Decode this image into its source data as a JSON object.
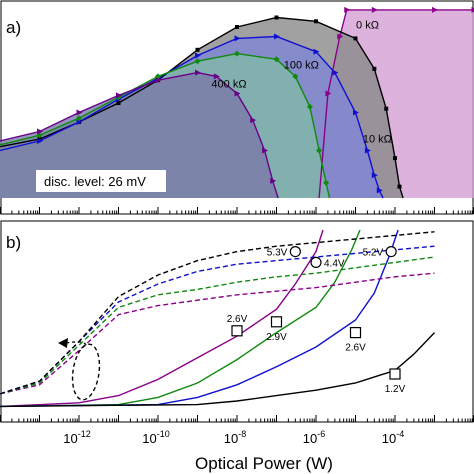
{
  "chart_data": [
    {
      "panel": "a)",
      "type": "area",
      "title": "",
      "xscale": "log",
      "xlim": [
        1e-14,
        0.01
      ],
      "ylim": [
        0,
        1
      ],
      "ylabel": "",
      "annotation": "disc. level: 26 mV",
      "series": [
        {
          "name": "0 kΩ",
          "fill": "#8a8a8a",
          "stroke": "#000000",
          "marker": "square",
          "x": [
            1e-14,
            1e-13,
            1e-12,
            1e-11,
            1e-10,
            1e-09,
            1e-08,
            1e-07,
            1e-06,
            1e-05,
            3e-05,
            6e-05,
            0.0001,
            0.00013,
            0.00016
          ],
          "y": [
            0.27,
            0.31,
            0.4,
            0.5,
            0.62,
            0.78,
            0.9,
            0.95,
            0.93,
            0.84,
            0.68,
            0.47,
            0.21,
            0.06,
            0.0
          ]
        },
        {
          "name": "10 kΩ",
          "fill": "#7f86d6",
          "stroke": "#1010d0",
          "marker": "triangle-right",
          "x": [
            1e-14,
            1e-13,
            1e-12,
            1e-11,
            1e-10,
            1e-09,
            1e-08,
            1e-07,
            1e-06,
            3e-06,
            1e-05,
            2e-05,
            3e-05,
            4e-05,
            5e-05
          ],
          "y": [
            0.25,
            0.3,
            0.4,
            0.52,
            0.63,
            0.75,
            0.84,
            0.85,
            0.77,
            0.66,
            0.45,
            0.25,
            0.12,
            0.04,
            0.0
          ]
        },
        {
          "name": "100 kΩ",
          "fill": "#7fb9a8",
          "stroke": "#108a10",
          "marker": "diamond",
          "x": [
            1e-14,
            1e-13,
            1e-12,
            1e-11,
            1e-10,
            1e-09,
            1e-08,
            1e-07,
            3e-07,
            7e-07,
            1.2e-06,
            1.8e-06,
            2.2e-06
          ],
          "y": [
            0.28,
            0.33,
            0.42,
            0.53,
            0.64,
            0.72,
            0.76,
            0.73,
            0.64,
            0.48,
            0.25,
            0.08,
            0.0
          ]
        },
        {
          "name": "400 kΩ",
          "fill": "#7a7aa8",
          "stroke": "#6a008a",
          "marker": "triangle-right",
          "x": [
            1e-14,
            1e-13,
            1e-12,
            1e-11,
            1e-10,
            1e-09,
            3e-09,
            1e-08,
            2.5e-08,
            5e-08,
            8e-08,
            1.1e-07
          ],
          "y": [
            0.3,
            0.35,
            0.45,
            0.54,
            0.62,
            0.66,
            0.64,
            0.55,
            0.41,
            0.25,
            0.09,
            0.0
          ]
        },
        {
          "name": "",
          "fill": "#d4a0d4",
          "stroke": "#8a008a",
          "marker": "triangle-right",
          "x": [
            1.2e-06,
            2e-06,
            4e-06,
            6e-06,
            3e-05,
            0.001,
            0.01
          ],
          "y": [
            0.0,
            0.55,
            0.85,
            0.99,
            0.99,
            0.99,
            0.99
          ]
        }
      ],
      "labels": [
        {
          "text": "0 kΩ",
          "series": 0
        },
        {
          "text": "10 kΩ",
          "series": 1
        },
        {
          "text": "100 kΩ",
          "series": 2
        },
        {
          "text": "400 kΩ",
          "series": 3
        }
      ]
    },
    {
      "panel": "b)",
      "type": "line",
      "xscale": "log",
      "xlim": [
        1e-14,
        0.01
      ],
      "xticks": [
        {
          "exp": -12,
          "text": "10",
          "sup": "-12"
        },
        {
          "exp": -10,
          "text": "10",
          "sup": "-10"
        },
        {
          "exp": -8,
          "text": "10",
          "sup": "-8"
        },
        {
          "exp": -6,
          "text": "10",
          "sup": "-6"
        },
        {
          "exp": -4,
          "text": "10",
          "sup": "-4"
        }
      ],
      "xlabel": "Optical Power (W)",
      "ylabel": "",
      "ylim": [
        0,
        1
      ],
      "series": [
        {
          "name": "",
          "style": "solid",
          "color": "#8a008a",
          "x": [
            1e-14,
            1e-12,
            1e-11,
            1e-10,
            1e-09,
            1e-08,
            1e-07,
            3e-07,
            1e-06,
            1.5e-06
          ],
          "y": [
            0.02,
            0.04,
            0.08,
            0.17,
            0.29,
            0.41,
            0.56,
            0.7,
            0.88,
            1.0
          ]
        },
        {
          "name": "",
          "style": "solid",
          "color": "#108a10",
          "x": [
            1e-14,
            1e-11,
            1e-10,
            1e-09,
            1e-08,
            1e-07,
            1e-06,
            3e-06,
            8e-06,
            1.3e-05
          ],
          "y": [
            0.02,
            0.03,
            0.07,
            0.15,
            0.28,
            0.43,
            0.57,
            0.71,
            0.89,
            1.0
          ]
        },
        {
          "name": "",
          "style": "solid",
          "color": "#1010d0",
          "x": [
            1e-14,
            1e-10,
            1e-09,
            1e-08,
            1e-07,
            1e-06,
            1e-05,
            3e-05,
            7e-05,
            0.00012
          ],
          "y": [
            0.02,
            0.03,
            0.07,
            0.14,
            0.24,
            0.35,
            0.5,
            0.65,
            0.85,
            1.0
          ]
        },
        {
          "name": "",
          "style": "solid",
          "color": "#000000",
          "x": [
            1e-14,
            1e-09,
            1e-08,
            1e-07,
            1e-06,
            1e-05,
            0.0001,
            0.0003,
            0.001
          ],
          "y": [
            0.02,
            0.03,
            0.05,
            0.08,
            0.11,
            0.15,
            0.22,
            0.31,
            0.43
          ]
        },
        {
          "name": "",
          "style": "dashed",
          "color": "#8a008a",
          "x": [
            1e-14,
            1e-13,
            1e-12,
            1e-11,
            1e-10,
            1e-09,
            1e-08,
            1e-07,
            1e-06,
            1e-05,
            0.0001,
            0.001
          ],
          "y": [
            0.09,
            0.14,
            0.33,
            0.53,
            0.58,
            0.61,
            0.64,
            0.66,
            0.68,
            0.71,
            0.74,
            0.76
          ]
        },
        {
          "name": "",
          "style": "dashed",
          "color": "#108a10",
          "x": [
            1e-14,
            1e-13,
            1e-12,
            1e-11,
            1e-10,
            1e-09,
            1e-08,
            1e-07,
            1e-06,
            1e-05,
            0.0001,
            0.001
          ],
          "y": [
            0.09,
            0.15,
            0.36,
            0.57,
            0.64,
            0.67,
            0.71,
            0.74,
            0.76,
            0.79,
            0.82,
            0.85
          ]
        },
        {
          "name": "",
          "style": "dashed",
          "color": "#1010d0",
          "x": [
            1e-14,
            1e-13,
            1e-12,
            1e-11,
            1e-10,
            1e-09,
            1e-08,
            1e-07,
            1e-06,
            1e-05,
            0.0001,
            0.001
          ],
          "y": [
            0.09,
            0.16,
            0.38,
            0.6,
            0.7,
            0.77,
            0.81,
            0.83,
            0.85,
            0.87,
            0.89,
            0.91
          ]
        },
        {
          "name": "",
          "style": "dashed",
          "color": "#000000",
          "x": [
            1e-14,
            1e-13,
            1e-12,
            1e-11,
            1e-10,
            1e-09,
            1e-08,
            1e-07,
            1e-06,
            1e-05,
            0.0001,
            0.001
          ],
          "y": [
            0.09,
            0.16,
            0.38,
            0.63,
            0.75,
            0.83,
            0.88,
            0.91,
            0.93,
            0.95,
            0.97,
            0.99
          ]
        }
      ],
      "markers": [
        {
          "shape": "circle",
          "text": "5.3V",
          "x": 3e-07,
          "y": 0.88,
          "label_side": "left"
        },
        {
          "shape": "circle",
          "text": "5.2V",
          "x": 8e-05,
          "y": 0.88,
          "label_side": "left"
        },
        {
          "shape": "circle",
          "text": "4.4V",
          "x": 1e-06,
          "y": 0.82,
          "label_side": "right"
        },
        {
          "shape": "square",
          "text": "2.6V",
          "x": 1e-08,
          "y": 0.44,
          "label_side": "above"
        },
        {
          "shape": "square",
          "text": "2.9V",
          "x": 1e-07,
          "y": 0.49,
          "label_side": "below"
        },
        {
          "shape": "square",
          "text": "2.6V",
          "x": 1e-05,
          "y": 0.43,
          "label_side": "below"
        },
        {
          "shape": "square",
          "text": "1.2V",
          "x": 0.0001,
          "y": 0.2,
          "label_side": "below"
        }
      ]
    }
  ]
}
